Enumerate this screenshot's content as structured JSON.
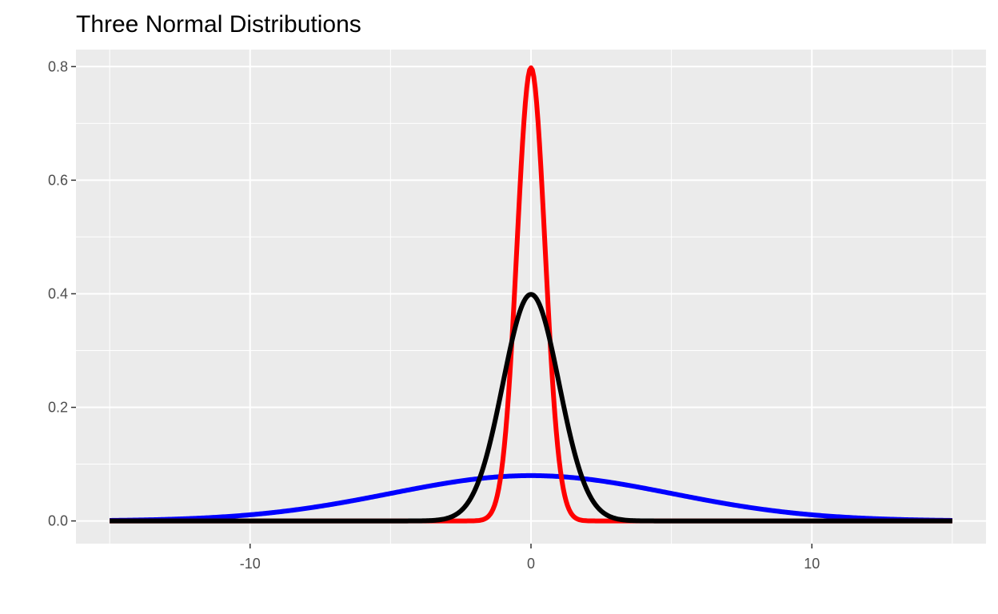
{
  "chart_data": {
    "type": "line",
    "title": "Three Normal Distributions",
    "xlabel": "",
    "ylabel": "",
    "xlim": [
      -15,
      15
    ],
    "ylim": [
      0,
      0.8
    ],
    "x_ticks": [
      -10,
      0,
      10
    ],
    "x_tick_labels": [
      "-10",
      "0",
      "10"
    ],
    "y_ticks": [
      0.0,
      0.2,
      0.4,
      0.6,
      0.8
    ],
    "y_tick_labels": [
      "0.0",
      "0.2",
      "0.4",
      "0.6",
      "0.8"
    ],
    "grid": true,
    "legend": "none",
    "colors": {
      "panel_background": "#ebebeb",
      "grid_line": "#ffffff",
      "tick_mark": "#333333"
    },
    "series": [
      {
        "color": "#0000ff",
        "mean": 0,
        "sd": 5,
        "peak": 0.0798
      },
      {
        "color": "#ff0000",
        "mean": 0,
        "sd": 0.5,
        "peak": 0.7979
      },
      {
        "color": "#000000",
        "mean": 0,
        "sd": 1,
        "peak": 0.3989
      }
    ]
  }
}
